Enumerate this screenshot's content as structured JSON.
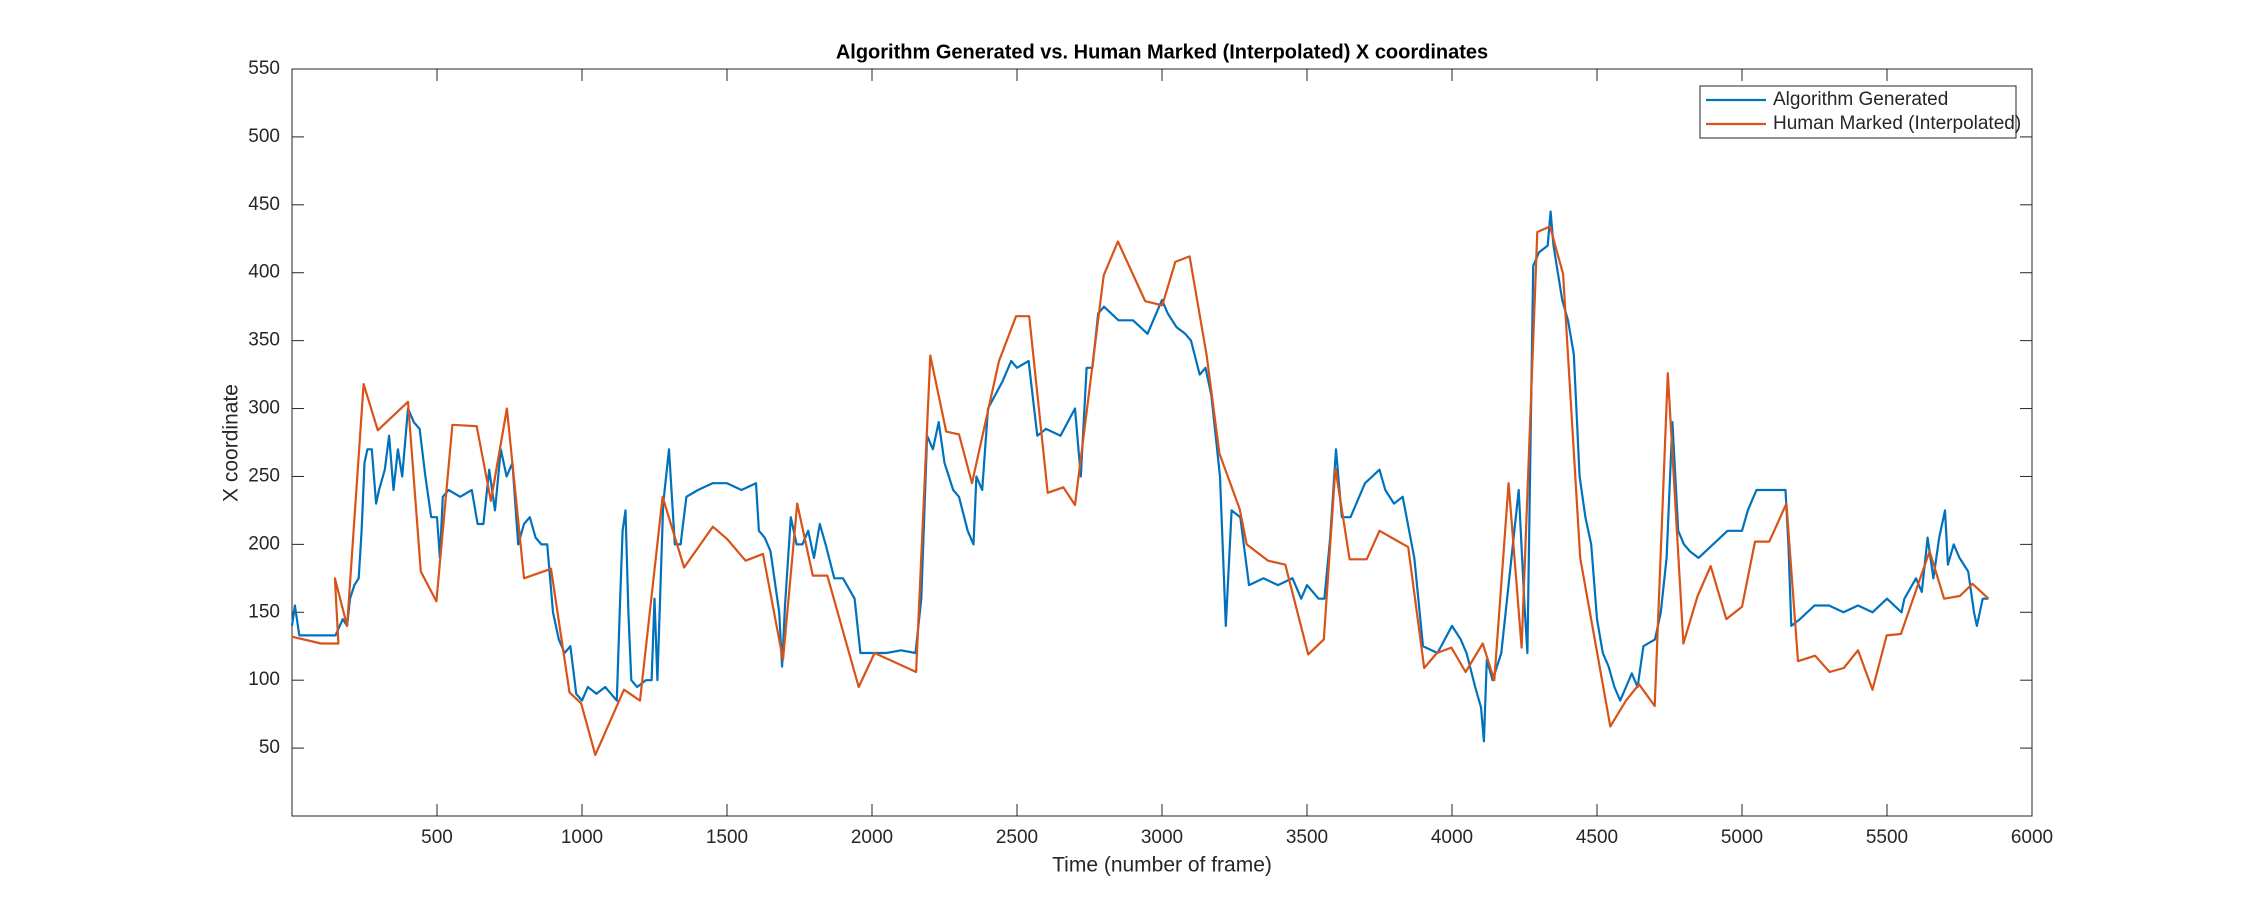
{
  "chart_data": {
    "type": "line",
    "title": "Algorithm Generated vs. Human Marked (Interpolated) X coordinates",
    "x_label": "Time (number of frame)",
    "y_label": "X coordinate",
    "xlim": [
      0,
      6000
    ],
    "ylim": [
      0,
      550
    ],
    "xticks": [
      500,
      1000,
      1500,
      2000,
      2500,
      3000,
      3500,
      4000,
      4500,
      5000,
      5500,
      6000
    ],
    "yticks": [
      50,
      100,
      150,
      200,
      250,
      300,
      350,
      400,
      450,
      500,
      550
    ],
    "legend_position": "upper-right",
    "series": [
      {
        "name": "Algorithm Generated",
        "color": "#0072bd",
        "x": [
          0,
          10,
          25,
          100,
          150,
          175,
          190,
          200,
          215,
          230,
          240,
          250,
          260,
          275,
          290,
          300,
          320,
          335,
          350,
          365,
          380,
          400,
          420,
          440,
          460,
          480,
          500,
          510,
          520,
          540,
          580,
          620,
          640,
          660,
          680,
          700,
          720,
          740,
          760,
          780,
          800,
          820,
          840,
          860,
          880,
          900,
          920,
          940,
          960,
          980,
          1000,
          1020,
          1050,
          1080,
          1100,
          1120,
          1130,
          1140,
          1150,
          1160,
          1170,
          1190,
          1220,
          1240,
          1250,
          1260,
          1280,
          1300,
          1320,
          1340,
          1360,
          1400,
          1450,
          1500,
          1550,
          1600,
          1610,
          1630,
          1650,
          1680,
          1690,
          1700,
          1720,
          1740,
          1760,
          1780,
          1800,
          1820,
          1840,
          1870,
          1900,
          1940,
          1960,
          2000,
          2050,
          2100,
          2150,
          2170,
          2190,
          2210,
          2230,
          2250,
          2280,
          2300,
          2330,
          2350,
          2360,
          2380,
          2400,
          2450,
          2480,
          2500,
          2540,
          2570,
          2600,
          2650,
          2700,
          2720,
          2740,
          2760,
          2780,
          2800,
          2850,
          2900,
          2950,
          3000,
          3020,
          3050,
          3080,
          3100,
          3130,
          3150,
          3170,
          3200,
          3220,
          3240,
          3270,
          3300,
          3350,
          3400,
          3450,
          3480,
          3500,
          3540,
          3560,
          3580,
          3600,
          3620,
          3650,
          3700,
          3750,
          3770,
          3800,
          3830,
          3870,
          3900,
          3950,
          4000,
          4030,
          4050,
          4080,
          4100,
          4110,
          4120,
          4140,
          4170,
          4200,
          4230,
          4250,
          4260,
          4280,
          4300,
          4330,
          4340,
          4350,
          4380,
          4400,
          4420,
          4440,
          4460,
          4480,
          4500,
          4520,
          4540,
          4560,
          4580,
          4600,
          4620,
          4640,
          4660,
          4700,
          4720,
          4740,
          4760,
          4780,
          4800,
          4820,
          4850,
          4900,
          4950,
          5000,
          5020,
          5050,
          5100,
          5150,
          5160,
          5170,
          5200,
          5250,
          5300,
          5350,
          5400,
          5450,
          5500,
          5550,
          5560,
          5600,
          5620,
          5640,
          5660,
          5680,
          5700,
          5710,
          5730,
          5750,
          5780,
          5800,
          5810,
          5830,
          5850
        ],
        "values": [
          140,
          155,
          133,
          133,
          133,
          145,
          140,
          160,
          170,
          175,
          210,
          260,
          270,
          270,
          230,
          240,
          255,
          280,
          240,
          270,
          250,
          300,
          290,
          285,
          250,
          220,
          220,
          190,
          235,
          240,
          235,
          240,
          215,
          215,
          255,
          225,
          270,
          250,
          260,
          200,
          215,
          220,
          205,
          200,
          200,
          150,
          130,
          120,
          125,
          90,
          85,
          95,
          90,
          95,
          90,
          85,
          150,
          210,
          225,
          150,
          100,
          95,
          100,
          100,
          160,
          100,
          230,
          270,
          200,
          200,
          235,
          240,
          245,
          245,
          240,
          245,
          210,
          205,
          195,
          150,
          110,
          155,
          220,
          200,
          200,
          210,
          190,
          215,
          200,
          175,
          175,
          160,
          120,
          120,
          120,
          122,
          120,
          160,
          280,
          270,
          290,
          260,
          240,
          235,
          210,
          200,
          250,
          240,
          300,
          320,
          335,
          330,
          335,
          280,
          285,
          280,
          300,
          250,
          330,
          330,
          370,
          375,
          365,
          365,
          355,
          380,
          370,
          360,
          355,
          350,
          325,
          330,
          310,
          250,
          140,
          225,
          220,
          170,
          175,
          170,
          175,
          160,
          170,
          160,
          160,
          205,
          270,
          220,
          220,
          245,
          255,
          240,
          230,
          235,
          190,
          125,
          120,
          140,
          130,
          120,
          95,
          80,
          55,
          115,
          100,
          120,
          180,
          240,
          155,
          120,
          405,
          415,
          420,
          445,
          420,
          380,
          365,
          340,
          250,
          220,
          200,
          145,
          120,
          110,
          95,
          85,
          95,
          105,
          95,
          125,
          130,
          150,
          190,
          290,
          210,
          200,
          195,
          190,
          200,
          210,
          210,
          225,
          240,
          240,
          240,
          200,
          140,
          145,
          155,
          155,
          150,
          155,
          150,
          160,
          150,
          160,
          175,
          165,
          205,
          175,
          205,
          225,
          185,
          200,
          190,
          180,
          150,
          140,
          160,
          160
        ]
      },
      {
        "name": "Human Marked (Interpolated)",
        "color": "#d95319",
        "x": [
          0,
          100,
          160,
          148,
          190,
          247,
          296,
          400,
          444,
          498,
          553,
          637,
          686,
          741,
          800,
          893,
          957,
          997,
          1046,
          1145,
          1200,
          1278,
          1352,
          1451,
          1500,
          1564,
          1624,
          1693,
          1742,
          1796,
          1846,
          1954,
          2009,
          2152,
          2201,
          2256,
          2300,
          2345,
          2438,
          2497,
          2542,
          2606,
          2660,
          2700,
          2799,
          2848,
          2942,
          3001,
          3046,
          3095,
          3154,
          3198,
          3268,
          3292,
          3366,
          3425,
          3504,
          3558,
          3598,
          3647,
          3706,
          3750,
          3849,
          3904,
          3948,
          3998,
          4047,
          4106,
          4146,
          4195,
          4240,
          4294,
          4338,
          4383,
          4442,
          4546,
          4600,
          4645,
          4699,
          4744,
          4798,
          4847,
          4892,
          4946,
          5000,
          5045,
          5094,
          5153,
          5193,
          5252,
          5302,
          5351,
          5400,
          5450,
          5499,
          5548,
          5647,
          5697,
          5751,
          5795,
          5850
        ],
        "values": [
          132,
          127,
          127,
          175,
          140,
          318,
          284,
          305,
          180,
          158,
          288,
          287,
          232,
          300,
          175,
          182,
          91,
          83,
          45,
          93,
          85,
          235,
          183,
          213,
          204,
          188,
          193,
          115,
          230,
          177,
          177,
          95,
          120,
          106,
          339,
          283,
          281,
          245,
          335,
          368,
          368,
          238,
          242,
          229,
          398,
          423,
          379,
          376,
          408,
          412,
          339,
          267,
          226,
          200,
          188,
          185,
          119,
          130,
          256,
          189,
          189,
          210,
          198,
          109,
          120,
          124,
          106,
          127,
          100,
          245,
          124,
          430,
          434,
          399,
          190,
          66,
          85,
          97,
          81,
          326,
          127,
          162,
          184,
          145,
          154,
          202,
          202,
          230,
          114,
          118,
          106,
          109,
          122,
          93,
          133,
          134,
          195,
          160,
          162,
          171,
          160
        ]
      }
    ]
  }
}
